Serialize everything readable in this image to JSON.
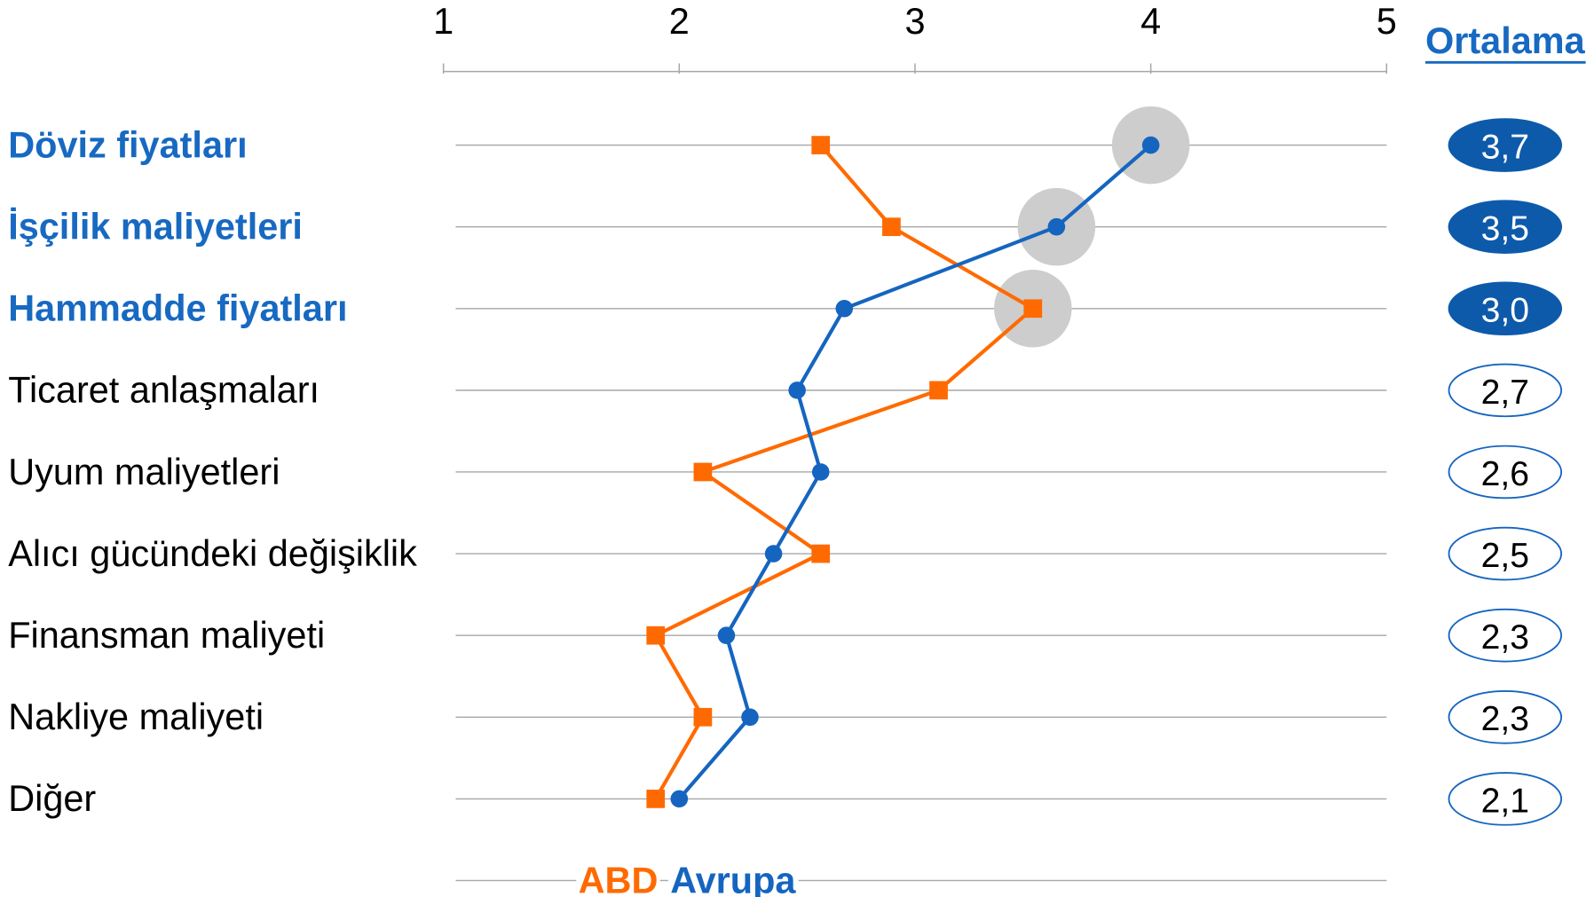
{
  "chart_data": {
    "type": "line",
    "orientation": "horizontal",
    "categories": [
      "Döviz fiyatları",
      "İşçilik maliyetleri",
      "Hammadde fiyatları",
      "Ticaret anlaşmaları",
      "Uyum maliyetleri",
      "Alıcı gücündeki değişiklik",
      "Finansman maliyeti",
      "Nakliye maliyeti",
      "Diğer"
    ],
    "categories_emphasized": [
      true,
      true,
      true,
      false,
      false,
      false,
      false,
      false,
      false
    ],
    "x_ticks": [
      "1",
      "2",
      "3",
      "4",
      "5"
    ],
    "xlim": [
      1,
      5
    ],
    "grid": true,
    "legend_position": "bottom",
    "series": [
      {
        "name": "ABD",
        "color": "#ff6a00",
        "marker": "square",
        "values": [
          2.6,
          2.9,
          3.5,
          3.1,
          2.1,
          2.6,
          1.9,
          2.1,
          1.9
        ]
      },
      {
        "name": "Avrupa",
        "color": "#1565c0",
        "marker": "circle",
        "values": [
          4.0,
          3.6,
          2.7,
          2.5,
          2.6,
          2.4,
          2.2,
          2.3,
          2.0
        ]
      }
    ],
    "highlighted_points": [
      {
        "series": 1,
        "category": 0
      },
      {
        "series": 1,
        "category": 1
      },
      {
        "series": 0,
        "category": 2
      }
    ],
    "averages": {
      "header": "Ortalama",
      "values": [
        "3,7",
        "3,5",
        "3,0",
        "2,7",
        "2,6",
        "2,5",
        "2,3",
        "2,3",
        "2,1"
      ],
      "emphasized": [
        true,
        true,
        true,
        false,
        false,
        false,
        false,
        false,
        false
      ]
    }
  },
  "colors": {
    "text": "#000000",
    "label_emphasis": "#1769c1",
    "grid": "#a6a6a6",
    "highlight": "#cdcdcd",
    "badge_fill": "#0d5aab",
    "badge_outline": "#1565c0",
    "badge_text_emphasis": "#ffffff",
    "background": "#ffffff"
  }
}
